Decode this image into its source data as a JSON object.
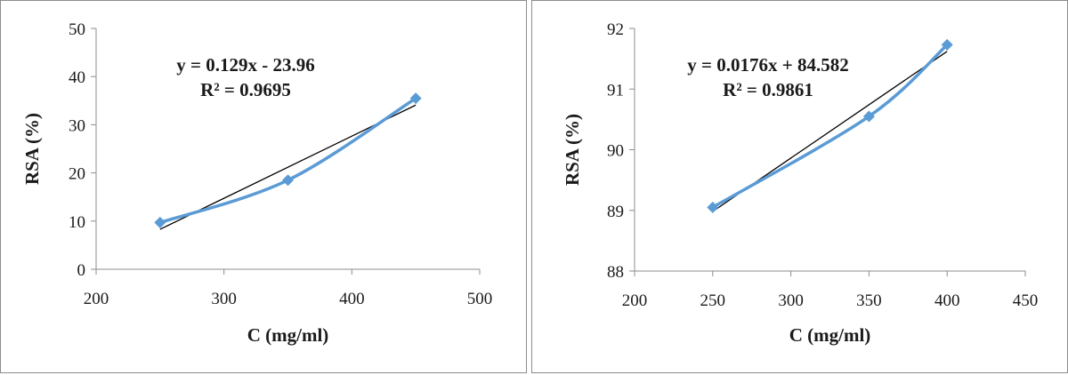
{
  "chart_data": [
    {
      "type": "scatter",
      "xlabel": "C (mg/ml)",
      "ylabel": "RSA (%)",
      "xlim": [
        200,
        500
      ],
      "ylim": [
        0,
        50
      ],
      "xticks": [
        200,
        300,
        400,
        500
      ],
      "yticks": [
        0,
        10,
        20,
        30,
        40,
        50
      ],
      "grid": false,
      "series": [
        {
          "x": [
            250,
            350,
            450
          ],
          "values": [
            9.7,
            18.5,
            35.5
          ],
          "color": "#5b9bd5",
          "marker": "diamond",
          "smooth": true
        }
      ],
      "trendline": {
        "slope": 0.129,
        "intercept": -23.96,
        "color": "#000000"
      },
      "annotations": [
        "y = 0.129x - 23.96",
        "R² = 0.9695"
      ]
    },
    {
      "type": "scatter",
      "xlabel": "C (mg/ml)",
      "ylabel": "RSA (%)",
      "xlim": [
        200,
        450
      ],
      "ylim": [
        88,
        92
      ],
      "xticks": [
        200,
        250,
        300,
        350,
        400,
        450
      ],
      "yticks": [
        88,
        89,
        90,
        91,
        92
      ],
      "grid": false,
      "series": [
        {
          "x": [
            250,
            350,
            400
          ],
          "values": [
            89.05,
            90.55,
            91.73
          ],
          "color": "#5b9bd5",
          "marker": "diamond",
          "smooth": true
        }
      ],
      "trendline": {
        "slope": 0.0176,
        "intercept": 84.582,
        "color": "#000000"
      },
      "annotations": [
        "y = 0.0176x + 84.582",
        "R² = 0.9861"
      ]
    }
  ]
}
